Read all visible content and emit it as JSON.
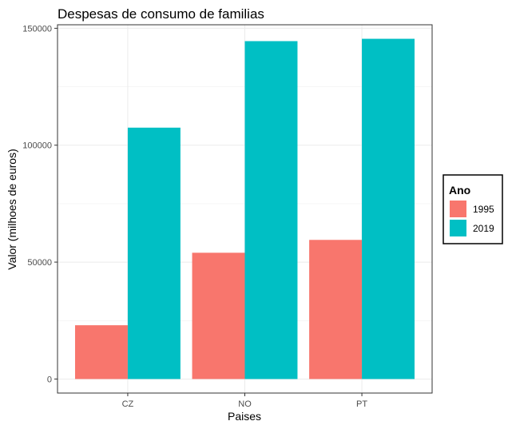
{
  "chart_data": {
    "type": "bar",
    "title": "Despesas de consumo de familias",
    "xlabel": "Paises",
    "ylabel": "Valor (milhoes de euros)",
    "categories": [
      "CZ",
      "NO",
      "PT"
    ],
    "series": [
      {
        "name": "1995",
        "color": "#F8766D",
        "values": [
          23000,
          54000,
          59500
        ]
      },
      {
        "name": "2019",
        "color": "#00BFC4",
        "values": [
          107500,
          144500,
          145500
        ]
      }
    ],
    "ylim": [
      -6000,
      151500
    ],
    "yticks": [
      0,
      50000,
      100000,
      150000
    ],
    "ytick_labels": [
      "0",
      "50000",
      "100000",
      "150000"
    ],
    "grid": true,
    "legend": {
      "title": "Ano",
      "position": "right"
    }
  }
}
